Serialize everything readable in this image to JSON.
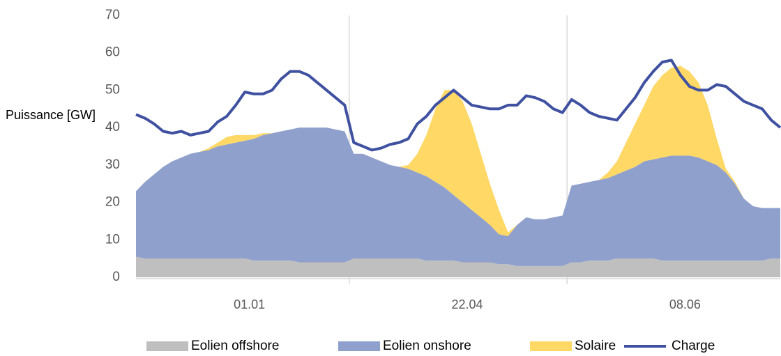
{
  "chart_data": {
    "type": "stacked_area_line",
    "y_label": "Puissance [GW]",
    "categories": [
      null,
      null,
      null,
      null,
      null,
      null,
      null,
      null,
      null,
      null,
      null,
      null,
      "01.01",
      null,
      null,
      null,
      null,
      null,
      null,
      null,
      null,
      null,
      null,
      null,
      null,
      null,
      null,
      null,
      null,
      null,
      null,
      null,
      null,
      null,
      null,
      null,
      "22.04",
      null,
      null,
      null,
      null,
      null,
      null,
      null,
      null,
      null,
      null,
      null,
      null,
      null,
      null,
      null,
      null,
      null,
      null,
      null,
      null,
      null,
      null,
      null,
      "08.06",
      null,
      null,
      null,
      null,
      null,
      null,
      null,
      null,
      null,
      null,
      null
    ],
    "ylim": [
      0,
      70
    ],
    "yticks": [
      0,
      10,
      20,
      30,
      40,
      50,
      60,
      70
    ],
    "grid": false,
    "legend": "bottom",
    "series": [
      {
        "name": "Eolien offshore",
        "type": "area",
        "color": "#bfbfbf",
        "values": [
          5.5,
          5,
          5,
          5,
          5,
          5,
          5,
          5,
          5,
          5,
          5,
          5,
          5,
          4.5,
          4.5,
          4.5,
          4.5,
          4.5,
          4,
          4,
          4,
          4,
          4,
          4,
          5,
          5,
          5,
          5,
          5,
          5,
          5,
          5,
          4.5,
          4.5,
          4.5,
          4.5,
          4,
          4,
          4,
          4,
          3.5,
          3.5,
          3,
          3,
          3,
          3,
          3,
          3,
          4,
          4,
          4.5,
          4.5,
          4.5,
          5,
          5,
          5,
          5,
          5,
          4.5,
          4.5,
          4.5,
          4.5,
          4.5,
          4.5,
          4.5,
          4.5,
          4.5,
          4.5,
          4.5,
          4.5,
          5,
          5
        ]
      },
      {
        "name": "Eolien onshore",
        "type": "area",
        "color": "#8fa0cd",
        "values": [
          17.5,
          20.5,
          22.5,
          24.5,
          26,
          27,
          28,
          28.5,
          29,
          30,
          30.5,
          31,
          31.5,
          32.5,
          33.5,
          34,
          34.5,
          35,
          36,
          36,
          36,
          36,
          35.5,
          35,
          28,
          28,
          27,
          26,
          25,
          24.5,
          24,
          23,
          22.5,
          21,
          19.5,
          17.5,
          16,
          14,
          12,
          10,
          8,
          7.5,
          11,
          13,
          12.5,
          12.5,
          13,
          13.5,
          20.5,
          21,
          21,
          21.5,
          22,
          22.5,
          23.5,
          24.5,
          26,
          26.5,
          27.5,
          28,
          28,
          28,
          27.5,
          26.5,
          25.5,
          23.5,
          20.5,
          16.5,
          14.5,
          14,
          13.5,
          13.5
        ]
      },
      {
        "name": "Solaire",
        "type": "area",
        "color": "#ffd866",
        "values": [
          0,
          0,
          0,
          0,
          0,
          0,
          0,
          0,
          0.5,
          1,
          2,
          2,
          1.5,
          1,
          0.5,
          0,
          0,
          0,
          0,
          0,
          0,
          0,
          0,
          0,
          0,
          0,
          0,
          0,
          0,
          0,
          1,
          5,
          11,
          19.5,
          26,
          28,
          27,
          23,
          17,
          11,
          6.5,
          1,
          0,
          0,
          0,
          0,
          0,
          0,
          0,
          0,
          0,
          0,
          1.5,
          3.5,
          7.5,
          11.5,
          15,
          19.5,
          22,
          23.5,
          24,
          22.5,
          20,
          15,
          7,
          1,
          0.5,
          0,
          0,
          0,
          0,
          0
        ]
      },
      {
        "name": "Charge",
        "type": "line",
        "color": "#3f51a0",
        "values": [
          43.5,
          42.5,
          41,
          39,
          38.5,
          39,
          38,
          38.5,
          39,
          41.5,
          43,
          46,
          49.5,
          49,
          49,
          50,
          53,
          55,
          55,
          54,
          52,
          50,
          48,
          46,
          36,
          35,
          34,
          34.5,
          35.5,
          36,
          37,
          41,
          43,
          46,
          48,
          50,
          48,
          46,
          45.5,
          45,
          45,
          46,
          46,
          48.5,
          48,
          47,
          45,
          44,
          47.5,
          46,
          44,
          43,
          42.5,
          42,
          45,
          48,
          52,
          55,
          57.5,
          58,
          54,
          51,
          50,
          50,
          51.5,
          51,
          49,
          47,
          46,
          45,
          42,
          40
        ]
      }
    ]
  }
}
